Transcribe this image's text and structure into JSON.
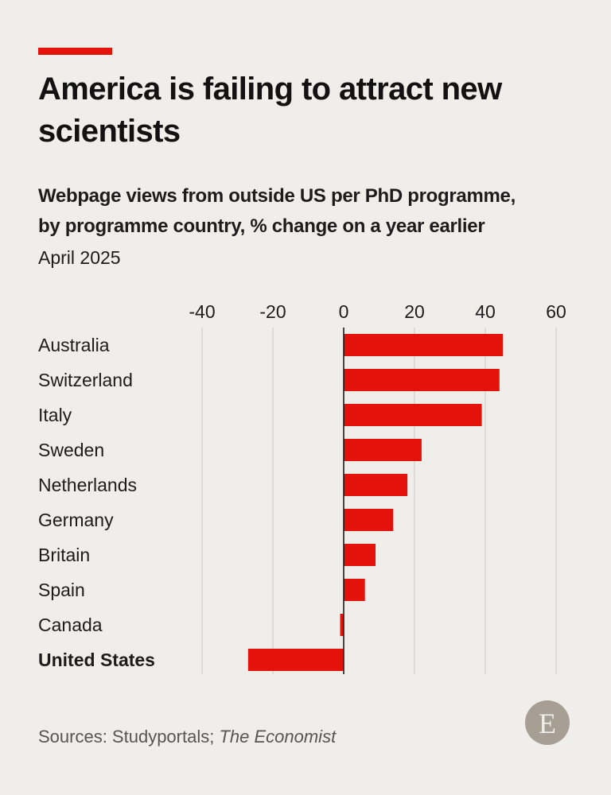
{
  "header": {
    "accent_color": "#e3120b",
    "title": "America is failing to attract new scientists",
    "subtitle_line1": "Webpage views from outside US per PhD programme,",
    "subtitle_line2": "by programme country, % change on a year earlier",
    "date": "April 2025"
  },
  "chart_data": {
    "type": "bar",
    "orientation": "horizontal",
    "categories": [
      "Australia",
      "Switzerland",
      "Italy",
      "Sweden",
      "Netherlands",
      "Germany",
      "Britain",
      "Spain",
      "Canada",
      "United States"
    ],
    "values": [
      45,
      44,
      39,
      22,
      18,
      14,
      9,
      6,
      -1,
      -27
    ],
    "highlighted_category": "United States",
    "xlim": [
      -40,
      60
    ],
    "xticks": [
      -40,
      -20,
      0,
      20,
      40,
      60
    ],
    "grid": true,
    "bar_color": "#e3120b"
  },
  "footer": {
    "source_prefix": "Sources: Studyportals; ",
    "source_italic": "The Economist",
    "logo_letter": "E"
  }
}
